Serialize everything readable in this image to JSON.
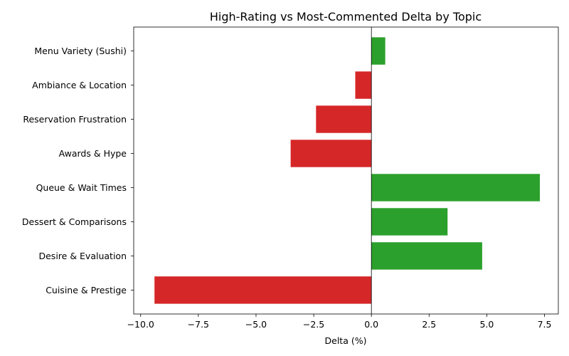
{
  "chart_data": {
    "type": "bar",
    "orientation": "horizontal",
    "title": "High-Rating vs Most-Commented Delta by Topic",
    "xlabel": "Delta (%)",
    "ylabel": "",
    "categories": [
      "Menu Variety (Sushi)",
      "Ambiance & Location",
      "Reservation Frustration",
      "Awards & Hype",
      "Queue & Wait Times",
      "Dessert & Comparisons",
      "Desire & Evaluation",
      "Cuisine & Prestige"
    ],
    "values": [
      0.6,
      -0.7,
      -2.4,
      -3.5,
      7.3,
      3.3,
      4.8,
      -9.4
    ],
    "xlim": [
      -10.3,
      8.1
    ],
    "xticks": [
      -10.0,
      -7.5,
      -5.0,
      -2.5,
      0.0,
      2.5,
      5.0,
      7.5
    ],
    "xtick_labels": [
      "−10.0",
      "−7.5",
      "−5.0",
      "−2.5",
      "0.0",
      "2.5",
      "5.0",
      "7.5"
    ],
    "zero_line": true,
    "grid": false,
    "colors": {
      "positive": "#2ca02c",
      "negative": "#d62728"
    }
  }
}
